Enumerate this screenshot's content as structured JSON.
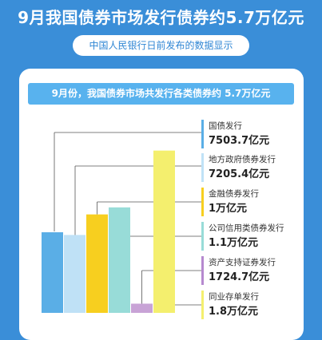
{
  "page": {
    "title": "9月我国债券市场发行债券约5.7万亿元",
    "subtitle": "中国人民银行日前发布的数据显示",
    "panel_header": "9月份，我国债券市场共发行各类债券约 5.7万亿元"
  },
  "chart_data": {
    "type": "bar",
    "title": "9月份，我国债券市场共发行各类债券约 5.7万亿元",
    "legend_placement": "right",
    "grid": false,
    "ylim": [
      0,
      3.6
    ],
    "bars": [
      {
        "value": 1.49,
        "color": "#5aaee6",
        "legend_index": null
      },
      {
        "value": 1.44,
        "color": "#bfe1f6",
        "legend_index": null
      },
      {
        "value": 1.82,
        "color": "#f7cf1f",
        "legend_index": 2
      },
      {
        "value": 1.95,
        "color": "#98dcd8",
        "legend_index": 3
      },
      {
        "value": 0.17,
        "color": "#c8a3d6",
        "legend_index": 4
      },
      {
        "value": 3.0,
        "color": "#f4ef6e",
        "legend_index": 5
      }
    ],
    "legend": [
      {
        "name": "国债发行",
        "value_text": "7503.7亿元",
        "value": 7503.7,
        "unit": "亿元",
        "color": "#5aaee6"
      },
      {
        "name": "地方政府债券发行",
        "value_text": "7205.4亿元",
        "value": 7205.4,
        "unit": "亿元",
        "color": "#c0e2f7"
      },
      {
        "name": "金融债券发行",
        "value_text": "1万亿元",
        "value": 1,
        "unit": "万亿元",
        "color": "#f7cf1f"
      },
      {
        "name": "公司信用类债券发行",
        "value_text": "1.1万亿元",
        "value": 1.1,
        "unit": "万亿元",
        "color": "#98dcd8"
      },
      {
        "name": "资产支持证券发行",
        "value_text": "1724.7亿元",
        "value": 1724.7,
        "unit": "亿元",
        "color": "#b689cf"
      },
      {
        "name": "同业存单发行",
        "value_text": "1.8万亿元",
        "value": 1.8,
        "unit": "万亿元",
        "color": "#f4ef6e"
      }
    ]
  }
}
